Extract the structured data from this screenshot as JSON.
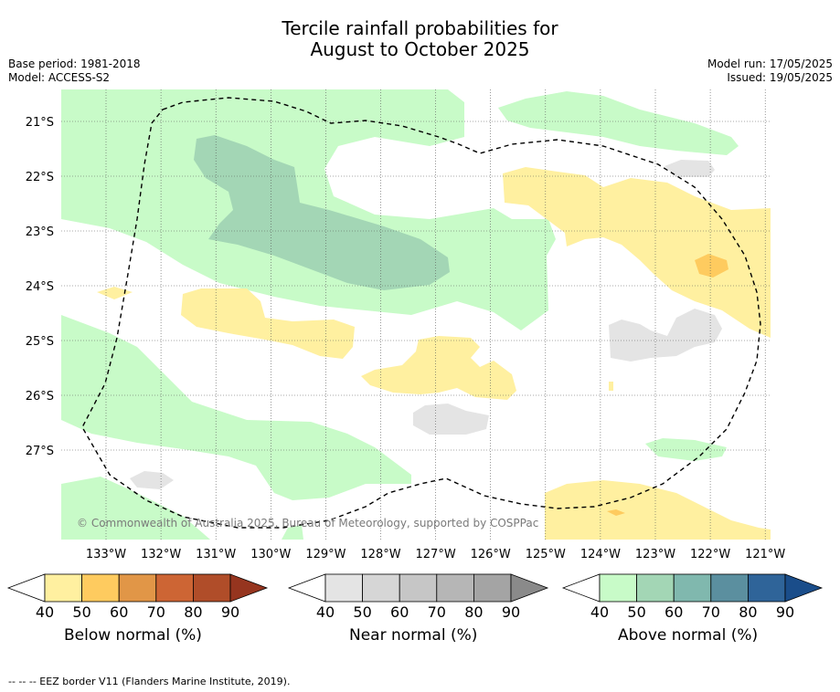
{
  "title_line1": "Tercile rainfall probabilities for",
  "title_line2": "August to October 2025",
  "base_period": "Base period: 1981-2018",
  "model": "Model: ACCESS-S2",
  "model_run": "Model run: 17/05/2025",
  "issued": "Issued: 19/05/2025",
  "copyright": "© Commonwealth of Australia 2025, Bureau of Meteorology, supported by COSPPac",
  "lat_labels": [
    "21°S",
    "22°S",
    "23°S",
    "24°S",
    "25°S",
    "26°S",
    "27°S"
  ],
  "lon_labels": [
    "133°W",
    "132°W",
    "131°W",
    "130°W",
    "129°W",
    "128°W",
    "127°W",
    "126°W",
    "125°W",
    "124°W",
    "123°W",
    "122°W",
    "121°W"
  ],
  "colorbars": [
    {
      "label": "Below normal (%)",
      "ticks": [
        "40",
        "50",
        "60",
        "70",
        "80",
        "90"
      ],
      "colors": [
        "#fff0a0",
        "#fecb5f",
        "#e19647",
        "#cd6534",
        "#b04d29",
        "#96351f"
      ]
    },
    {
      "label": "Near normal (%)",
      "ticks": [
        "40",
        "50",
        "60",
        "70",
        "80",
        "90"
      ],
      "colors": [
        "#e4e4e4",
        "#d6d6d6",
        "#c6c6c6",
        "#b6b6b6",
        "#a4a4a4",
        "#8a8a8a"
      ]
    },
    {
      "label": "Above normal (%)",
      "ticks": [
        "40",
        "50",
        "60",
        "70",
        "80",
        "90"
      ],
      "colors": [
        "#c8fbc8",
        "#a3d6b5",
        "#80b8ae",
        "#5b8f9f",
        "#2f6499",
        "#1a4d8a"
      ]
    }
  ],
  "footer": "--  --  -- EEZ border V11 (Flanders Marine Institute, 2019)."
}
